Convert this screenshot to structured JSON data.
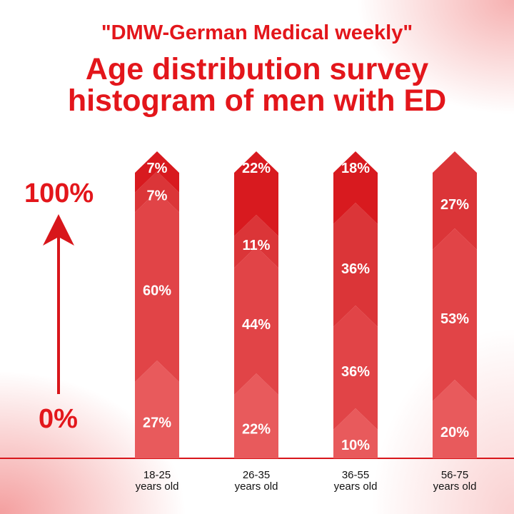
{
  "chart_data": {
    "type": "bar",
    "stacked": true,
    "subtitle": "\"DMW-German Medical weekly\"",
    "title_lines": [
      "Age distribution survey",
      "histogram of men with ED"
    ],
    "y_axis_labels": {
      "top": "100%",
      "bottom": "0%"
    },
    "categories": [
      [
        "18-25",
        "years old"
      ],
      [
        "26-35",
        "years old"
      ],
      [
        "36-55",
        "years old"
      ],
      [
        "56-75",
        "years old"
      ]
    ],
    "segments": [
      [
        27,
        60,
        7,
        7
      ],
      [
        22,
        44,
        11,
        22
      ],
      [
        10,
        36,
        36,
        18
      ],
      [
        20,
        53,
        27
      ]
    ],
    "segment_labels": [
      [
        "27%",
        "60%",
        "7%",
        "7%"
      ],
      [
        "22%",
        "44%",
        "11%",
        "22%"
      ],
      [
        "10%",
        "36%",
        "36%",
        "18%"
      ],
      [
        "20%",
        "53%",
        "27%"
      ]
    ],
    "colors": {
      "text": "#e3161b",
      "segment_shades": [
        "#e85a5c",
        "#e14447",
        "#db3538",
        "#d81a1f"
      ],
      "axis": "#d8161b"
    }
  }
}
